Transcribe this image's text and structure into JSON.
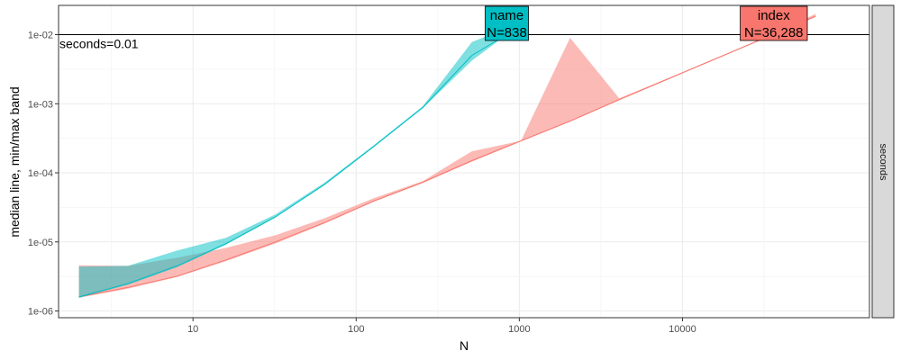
{
  "chart_data": {
    "type": "area",
    "xlabel": "N",
    "ylabel": "median line, min/max band",
    "x_scale": "log10",
    "y_scale": "log10",
    "xlim": [
      1.5,
      140000
    ],
    "ylim": [
      8e-07,
      0.0265
    ],
    "x_ticks": [
      {
        "value": 10,
        "label": "10"
      },
      {
        "value": 100,
        "label": "100"
      },
      {
        "value": 1000,
        "label": "1000"
      },
      {
        "value": 10000,
        "label": "10000"
      }
    ],
    "y_ticks": [
      {
        "value": 1e-06,
        "label": "1e-06"
      },
      {
        "value": 1e-05,
        "label": "1e-05"
      },
      {
        "value": 0.0001,
        "label": "1e-04"
      },
      {
        "value": 0.001,
        "label": "1e-03"
      },
      {
        "value": 0.01,
        "label": "1e-02"
      }
    ],
    "grid": true,
    "facet_strip": "seconds",
    "hline": {
      "value": 0.01,
      "label": "seconds=0.01"
    },
    "series": [
      {
        "name": "index",
        "color": "#F8766D",
        "x": [
          2,
          4,
          8,
          16,
          32,
          64,
          128,
          256,
          512,
          1024,
          2048,
          4096,
          8192,
          16384,
          32768,
          65536
        ],
        "median": [
          1.6e-06,
          2.2e-06,
          3.2e-06,
          5.5e-06,
          1e-05,
          1.9e-05,
          3.9e-05,
          7.3e-05,
          0.00015,
          0.00029,
          0.00056,
          0.00115,
          0.0023,
          0.0046,
          0.0092,
          0.0185
        ],
        "min": [
          1.55e-06,
          2.1e-06,
          3.1e-06,
          5.3e-06,
          9.5e-06,
          1.85e-05,
          3.8e-05,
          7.1e-05,
          0.000145,
          0.000285,
          0.00055,
          0.00112,
          0.00225,
          0.0045,
          0.009,
          0.018
        ],
        "max": [
          4.6e-06,
          4.5e-06,
          5.9e-06,
          8.2e-06,
          1.25e-05,
          2.2e-05,
          4.3e-05,
          7.6e-05,
          0.000205,
          0.00029,
          0.009,
          0.0012,
          0.00235,
          0.0047,
          0.0094,
          0.02
        ]
      },
      {
        "name": "name",
        "color": "#00BFC4",
        "x": [
          2,
          4,
          8,
          16,
          32,
          64,
          128,
          256,
          512,
          838
        ],
        "median": [
          1.6e-06,
          2.5e-06,
          4.5e-06,
          9.5e-06,
          2.3e-05,
          6.8e-05,
          0.00024,
          0.00088,
          0.005,
          0.01
        ],
        "min": [
          1.55e-06,
          2.4e-06,
          4.3e-06,
          9.2e-06,
          2.25e-05,
          6.6e-05,
          0.000235,
          0.00086,
          0.0042,
          0.01
        ],
        "max": [
          4.4e-06,
          4.5e-06,
          7.5e-06,
          1.15e-05,
          2.5e-05,
          7.2e-05,
          0.00025,
          0.00092,
          0.0078,
          0.0125
        ]
      }
    ],
    "labels": [
      {
        "series": "name",
        "x": 838,
        "line1": "name",
        "line2": "N=838"
      },
      {
        "series": "index",
        "x": 36288,
        "line1": "index",
        "line2": "N=36,288"
      }
    ]
  }
}
